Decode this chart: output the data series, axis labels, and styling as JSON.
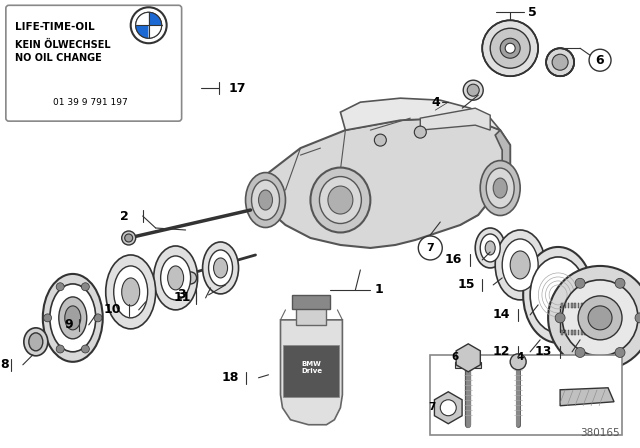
{
  "bg_color": "#ffffff",
  "diagram_number": "380165",
  "sticker_text_line1": "LIFE-TIME-OIL",
  "sticker_text_line2": "KEIN ÖLWECHSEL",
  "sticker_text_line3": "NO OIL CHANGE",
  "sticker_part_number": "01 39 9 791 197",
  "line_color": "#333333",
  "light_gray": "#e8e8e8",
  "mid_gray": "#c0c0c0",
  "dark_gray": "#888888",
  "housing_color": "#d8d8d8",
  "housing_edge": "#555555"
}
